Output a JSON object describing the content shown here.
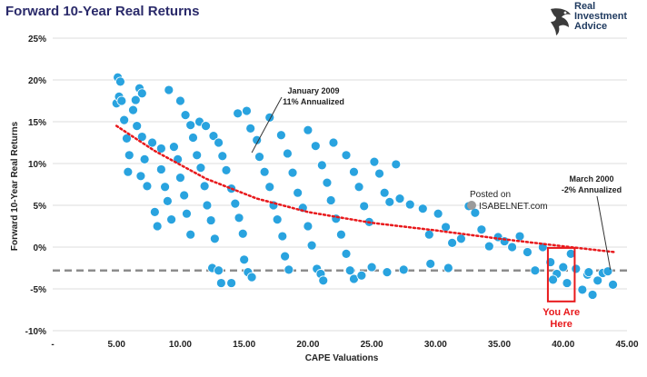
{
  "chart_data": {
    "type": "scatter",
    "title": "Forward 10-Year Real Returns",
    "xlabel": "CAPE Valuations",
    "ylabel": "Forward 10-Year Real Returns",
    "xlim": [
      0,
      45
    ],
    "ylim": [
      -10,
      25
    ],
    "x_ticks": [
      0,
      5,
      10,
      15,
      20,
      25,
      30,
      35,
      40,
      45
    ],
    "x_tick_labels": [
      "-",
      "5.00",
      "10.00",
      "15.00",
      "20.00",
      "25.00",
      "30.00",
      "35.00",
      "40.00",
      "45.00"
    ],
    "y_ticks": [
      -10,
      -5,
      0,
      5,
      10,
      15,
      20,
      25
    ],
    "y_tick_labels": [
      "-10%",
      "-5%",
      "0%",
      "5%",
      "10%",
      "15%",
      "20%",
      "25%"
    ],
    "grid": true,
    "point_color": "#29a3df",
    "trend_color": "#e8191c",
    "current_line_color": "#8c8c8c",
    "series": [
      {
        "points": [
          [
            5.0,
            17.2
          ],
          [
            5.1,
            20.3
          ],
          [
            5.3,
            19.8
          ],
          [
            5.2,
            18.0
          ],
          [
            5.4,
            17.5
          ],
          [
            5.6,
            15.2
          ],
          [
            5.8,
            13.0
          ],
          [
            6.0,
            11.0
          ],
          [
            5.9,
            9.0
          ],
          [
            6.3,
            16.4
          ],
          [
            6.5,
            17.6
          ],
          [
            6.8,
            19.0
          ],
          [
            7.0,
            18.4
          ],
          [
            6.6,
            14.5
          ],
          [
            7.0,
            13.2
          ],
          [
            7.2,
            10.5
          ],
          [
            6.9,
            8.5
          ],
          [
            7.4,
            7.3
          ],
          [
            7.8,
            12.5
          ],
          [
            8.0,
            4.2
          ],
          [
            8.2,
            2.5
          ],
          [
            8.5,
            11.8
          ],
          [
            8.5,
            9.3
          ],
          [
            8.8,
            7.2
          ],
          [
            9.0,
            5.5
          ],
          [
            9.3,
            3.3
          ],
          [
            9.5,
            12.0
          ],
          [
            9.8,
            10.5
          ],
          [
            10.0,
            8.3
          ],
          [
            10.3,
            6.2
          ],
          [
            10.5,
            4.0
          ],
          [
            10.8,
            1.5
          ],
          [
            9.1,
            18.8
          ],
          [
            10.0,
            17.5
          ],
          [
            10.4,
            15.8
          ],
          [
            10.8,
            14.6
          ],
          [
            11.0,
            13.1
          ],
          [
            11.3,
            11.0
          ],
          [
            11.6,
            9.5
          ],
          [
            11.9,
            7.3
          ],
          [
            12.1,
            5.0
          ],
          [
            12.4,
            3.2
          ],
          [
            12.7,
            1.0
          ],
          [
            12.5,
            -2.5
          ],
          [
            13.0,
            -2.8
          ],
          [
            13.2,
            -4.3
          ],
          [
            11.5,
            15.0
          ],
          [
            12.0,
            14.5
          ],
          [
            12.6,
            13.3
          ],
          [
            13.0,
            12.5
          ],
          [
            13.3,
            10.9
          ],
          [
            13.6,
            9.2
          ],
          [
            14.0,
            7.0
          ],
          [
            14.3,
            5.2
          ],
          [
            14.6,
            3.5
          ],
          [
            14.9,
            1.6
          ],
          [
            15.0,
            -1.5
          ],
          [
            15.3,
            -3.0
          ],
          [
            15.6,
            -3.6
          ],
          [
            14.0,
            -4.3
          ],
          [
            14.5,
            16.0
          ],
          [
            15.2,
            16.3
          ],
          [
            15.5,
            14.2
          ],
          [
            16.0,
            12.8
          ],
          [
            16.2,
            10.8
          ],
          [
            16.6,
            9.0
          ],
          [
            17.0,
            7.2
          ],
          [
            17.3,
            5.0
          ],
          [
            17.6,
            3.3
          ],
          [
            18.0,
            1.3
          ],
          [
            18.2,
            -1.1
          ],
          [
            18.5,
            -2.7
          ],
          [
            17.0,
            15.5
          ],
          [
            17.9,
            13.4
          ],
          [
            18.4,
            11.2
          ],
          [
            18.8,
            8.9
          ],
          [
            19.2,
            6.5
          ],
          [
            19.6,
            4.7
          ],
          [
            20.0,
            2.5
          ],
          [
            20.3,
            0.2
          ],
          [
            20.7,
            -2.6
          ],
          [
            21.0,
            -3.2
          ],
          [
            21.2,
            -4.0
          ],
          [
            20.0,
            14.0
          ],
          [
            20.6,
            12.1
          ],
          [
            21.1,
            9.8
          ],
          [
            21.5,
            7.7
          ],
          [
            21.8,
            5.6
          ],
          [
            22.2,
            3.4
          ],
          [
            22.6,
            1.5
          ],
          [
            23.0,
            -0.8
          ],
          [
            23.3,
            -2.8
          ],
          [
            23.6,
            -3.8
          ],
          [
            22.0,
            12.5
          ],
          [
            23.0,
            11.0
          ],
          [
            23.6,
            9.0
          ],
          [
            24.0,
            7.2
          ],
          [
            24.4,
            4.9
          ],
          [
            24.8,
            3.0
          ],
          [
            25.2,
            10.2
          ],
          [
            25.6,
            8.8
          ],
          [
            26.0,
            6.5
          ],
          [
            26.4,
            5.4
          ],
          [
            26.9,
            9.9
          ],
          [
            27.2,
            5.8
          ],
          [
            28.0,
            5.1
          ],
          [
            29.0,
            4.6
          ],
          [
            29.5,
            1.5
          ],
          [
            30.2,
            4.0
          ],
          [
            30.8,
            2.4
          ],
          [
            31.3,
            0.5
          ],
          [
            32.0,
            1.0
          ],
          [
            32.6,
            4.9
          ],
          [
            33.1,
            4.1
          ],
          [
            33.6,
            2.1
          ],
          [
            34.2,
            0.1
          ],
          [
            34.9,
            1.2
          ],
          [
            35.4,
            0.7
          ],
          [
            36.0,
            0.0
          ],
          [
            36.6,
            1.3
          ],
          [
            37.2,
            -0.6
          ],
          [
            37.8,
            -2.8
          ],
          [
            38.4,
            0.0
          ],
          [
            39.0,
            -1.8
          ],
          [
            39.5,
            -3.2
          ],
          [
            40.0,
            -2.4
          ],
          [
            40.3,
            -4.3
          ],
          [
            40.6,
            -0.8
          ],
          [
            41.0,
            -2.6
          ],
          [
            41.5,
            -5.1
          ],
          [
            41.9,
            -3.3
          ],
          [
            42.3,
            -5.7
          ],
          [
            42.7,
            -4.0
          ],
          [
            43.1,
            -3.1
          ],
          [
            43.5,
            -2.9
          ],
          [
            43.9,
            -4.5
          ],
          [
            29.6,
            -2.0
          ],
          [
            31.0,
            -2.5
          ],
          [
            27.5,
            -2.7
          ],
          [
            26.2,
            -3.0
          ],
          [
            25.0,
            -2.4
          ],
          [
            24.2,
            -3.4
          ],
          [
            39.2,
            -3.9
          ],
          [
            42.0,
            -3.0
          ]
        ]
      }
    ],
    "trendline": [
      [
        5.0,
        14.5
      ],
      [
        8.0,
        11.5
      ],
      [
        12.0,
        8.2
      ],
      [
        16.0,
        5.8
      ],
      [
        20.0,
        4.2
      ],
      [
        25.0,
        2.9
      ],
      [
        30.0,
        2.0
      ],
      [
        35.0,
        1.0
      ],
      [
        40.0,
        0.1
      ],
      [
        44.0,
        -0.6
      ]
    ],
    "current_level_y": -2.8,
    "annotations": [
      {
        "id": "jan2009",
        "line1": "January 2009",
        "line2": "11% Annualized",
        "point": [
          15.6,
          11.3
        ]
      },
      {
        "id": "mar2000",
        "line1": "March 2000",
        "line2": "-2% Annualized",
        "point": [
          43.7,
          -2.7
        ]
      }
    ],
    "highlight_box": {
      "x_range": [
        38.8,
        40.9
      ],
      "y_range": [
        -6.5,
        -0.1
      ],
      "label_line1": "You Are",
      "label_line2": "Here",
      "color": "#e8191c"
    },
    "watermark": {
      "line1": "Posted on",
      "line2": "ISABELNET.com"
    }
  },
  "logo": {
    "line1": "Real",
    "line2": "Investment",
    "line3": "Advice"
  }
}
